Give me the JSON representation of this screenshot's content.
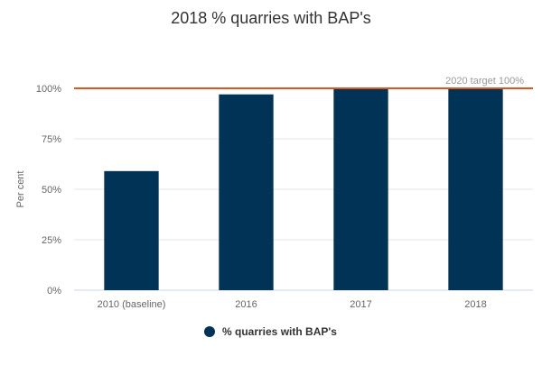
{
  "chart_data": {
    "type": "bar",
    "title": "2018 % quarries with BAP's",
    "ylabel": "Per cent",
    "xlabel": "",
    "categories": [
      "2010 (baseline)",
      "2016",
      "2017",
      "2018"
    ],
    "series": [
      {
        "name": "% quarries with BAP's",
        "values": [
          59,
          97,
          100,
          100
        ]
      }
    ],
    "ylim": [
      0,
      100
    ],
    "yticks": [
      {
        "value": 0,
        "label": "0%"
      },
      {
        "value": 25,
        "label": "25%"
      },
      {
        "value": 50,
        "label": "50%"
      },
      {
        "value": 75,
        "label": "75%"
      },
      {
        "value": 100,
        "label": "100%"
      }
    ],
    "target": {
      "value": 100,
      "label": "2020 target 100%"
    },
    "grid": true,
    "legend_position": "bottom",
    "colors": {
      "bar": "#003355",
      "target_line": "#e0551b"
    }
  }
}
